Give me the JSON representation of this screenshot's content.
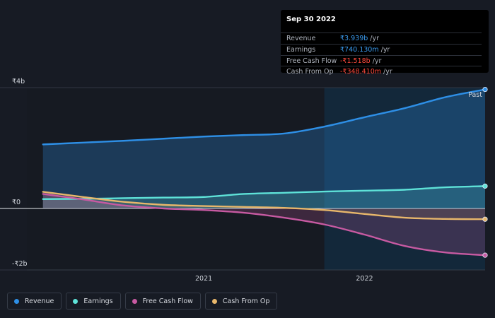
{
  "tooltip": {
    "date": "Sep 30 2022",
    "rows": [
      {
        "label": "Revenue",
        "value": "₹3.939b",
        "unit": " /yr",
        "color": "#3b9cf0"
      },
      {
        "label": "Earnings",
        "value": "₹740.130m",
        "unit": " /yr",
        "color": "#3b9cf0"
      },
      {
        "label": "Free Cash Flow",
        "value": "-₹1.518b",
        "unit": " /yr",
        "color": "#ff4a3d"
      },
      {
        "label": "Cash From Op",
        "value": "-₹348.410m",
        "unit": " /yr",
        "color": "#ff4a3d"
      }
    ]
  },
  "chart_data": {
    "type": "area",
    "yunit": "₹ billions",
    "ylim": [
      -2,
      4
    ],
    "y_ticks": [
      {
        "value": 4,
        "label": "₹4b"
      },
      {
        "value": 0,
        "label": "₹0"
      },
      {
        "value": -2,
        "label": "-₹2b"
      }
    ],
    "xlim": [
      2019.9,
      2022.75
    ],
    "x_ticks": [
      {
        "value": 2021.0,
        "label": "2021"
      },
      {
        "value": 2022.0,
        "label": "2022"
      }
    ],
    "past_region_start": 2021.75,
    "past_label": "Past",
    "series": [
      {
        "name": "Revenue",
        "color": "#2e8fe6",
        "x": [
          2020.0,
          2020.25,
          2020.5,
          2020.75,
          2021.0,
          2021.25,
          2021.5,
          2021.75,
          2022.0,
          2022.25,
          2022.5,
          2022.75
        ],
        "y": [
          2.12,
          2.18,
          2.24,
          2.31,
          2.38,
          2.43,
          2.48,
          2.71,
          3.02,
          3.32,
          3.68,
          3.94
        ]
      },
      {
        "name": "Earnings",
        "color": "#5ee2d8",
        "x": [
          2020.0,
          2020.25,
          2020.5,
          2020.75,
          2021.0,
          2021.25,
          2021.5,
          2021.75,
          2022.0,
          2022.25,
          2022.5,
          2022.75
        ],
        "y": [
          0.31,
          0.32,
          0.34,
          0.36,
          0.38,
          0.48,
          0.52,
          0.56,
          0.59,
          0.62,
          0.7,
          0.74
        ]
      },
      {
        "name": "Free Cash Flow",
        "color": "#c75aa2",
        "x": [
          2020.0,
          2020.25,
          2020.5,
          2020.75,
          2021.0,
          2021.25,
          2021.5,
          2021.75,
          2022.0,
          2022.25,
          2022.5,
          2022.75
        ],
        "y": [
          0.48,
          0.3,
          0.1,
          0.0,
          -0.05,
          -0.14,
          -0.3,
          -0.52,
          -0.85,
          -1.22,
          -1.43,
          -1.52
        ]
      },
      {
        "name": "Cash From Op",
        "color": "#e8b76b",
        "x": [
          2020.0,
          2020.25,
          2020.5,
          2020.75,
          2021.0,
          2021.25,
          2021.5,
          2021.75,
          2022.0,
          2022.25,
          2022.5,
          2022.75
        ],
        "y": [
          0.55,
          0.38,
          0.22,
          0.12,
          0.08,
          0.05,
          0.02,
          -0.05,
          -0.18,
          -0.3,
          -0.34,
          -0.35
        ]
      }
    ]
  },
  "legend": [
    {
      "label": "Revenue",
      "color": "#2e8fe6"
    },
    {
      "label": "Earnings",
      "color": "#5ee2d8"
    },
    {
      "label": "Free Cash Flow",
      "color": "#c75aa2"
    },
    {
      "label": "Cash From Op",
      "color": "#e8b76b"
    }
  ]
}
